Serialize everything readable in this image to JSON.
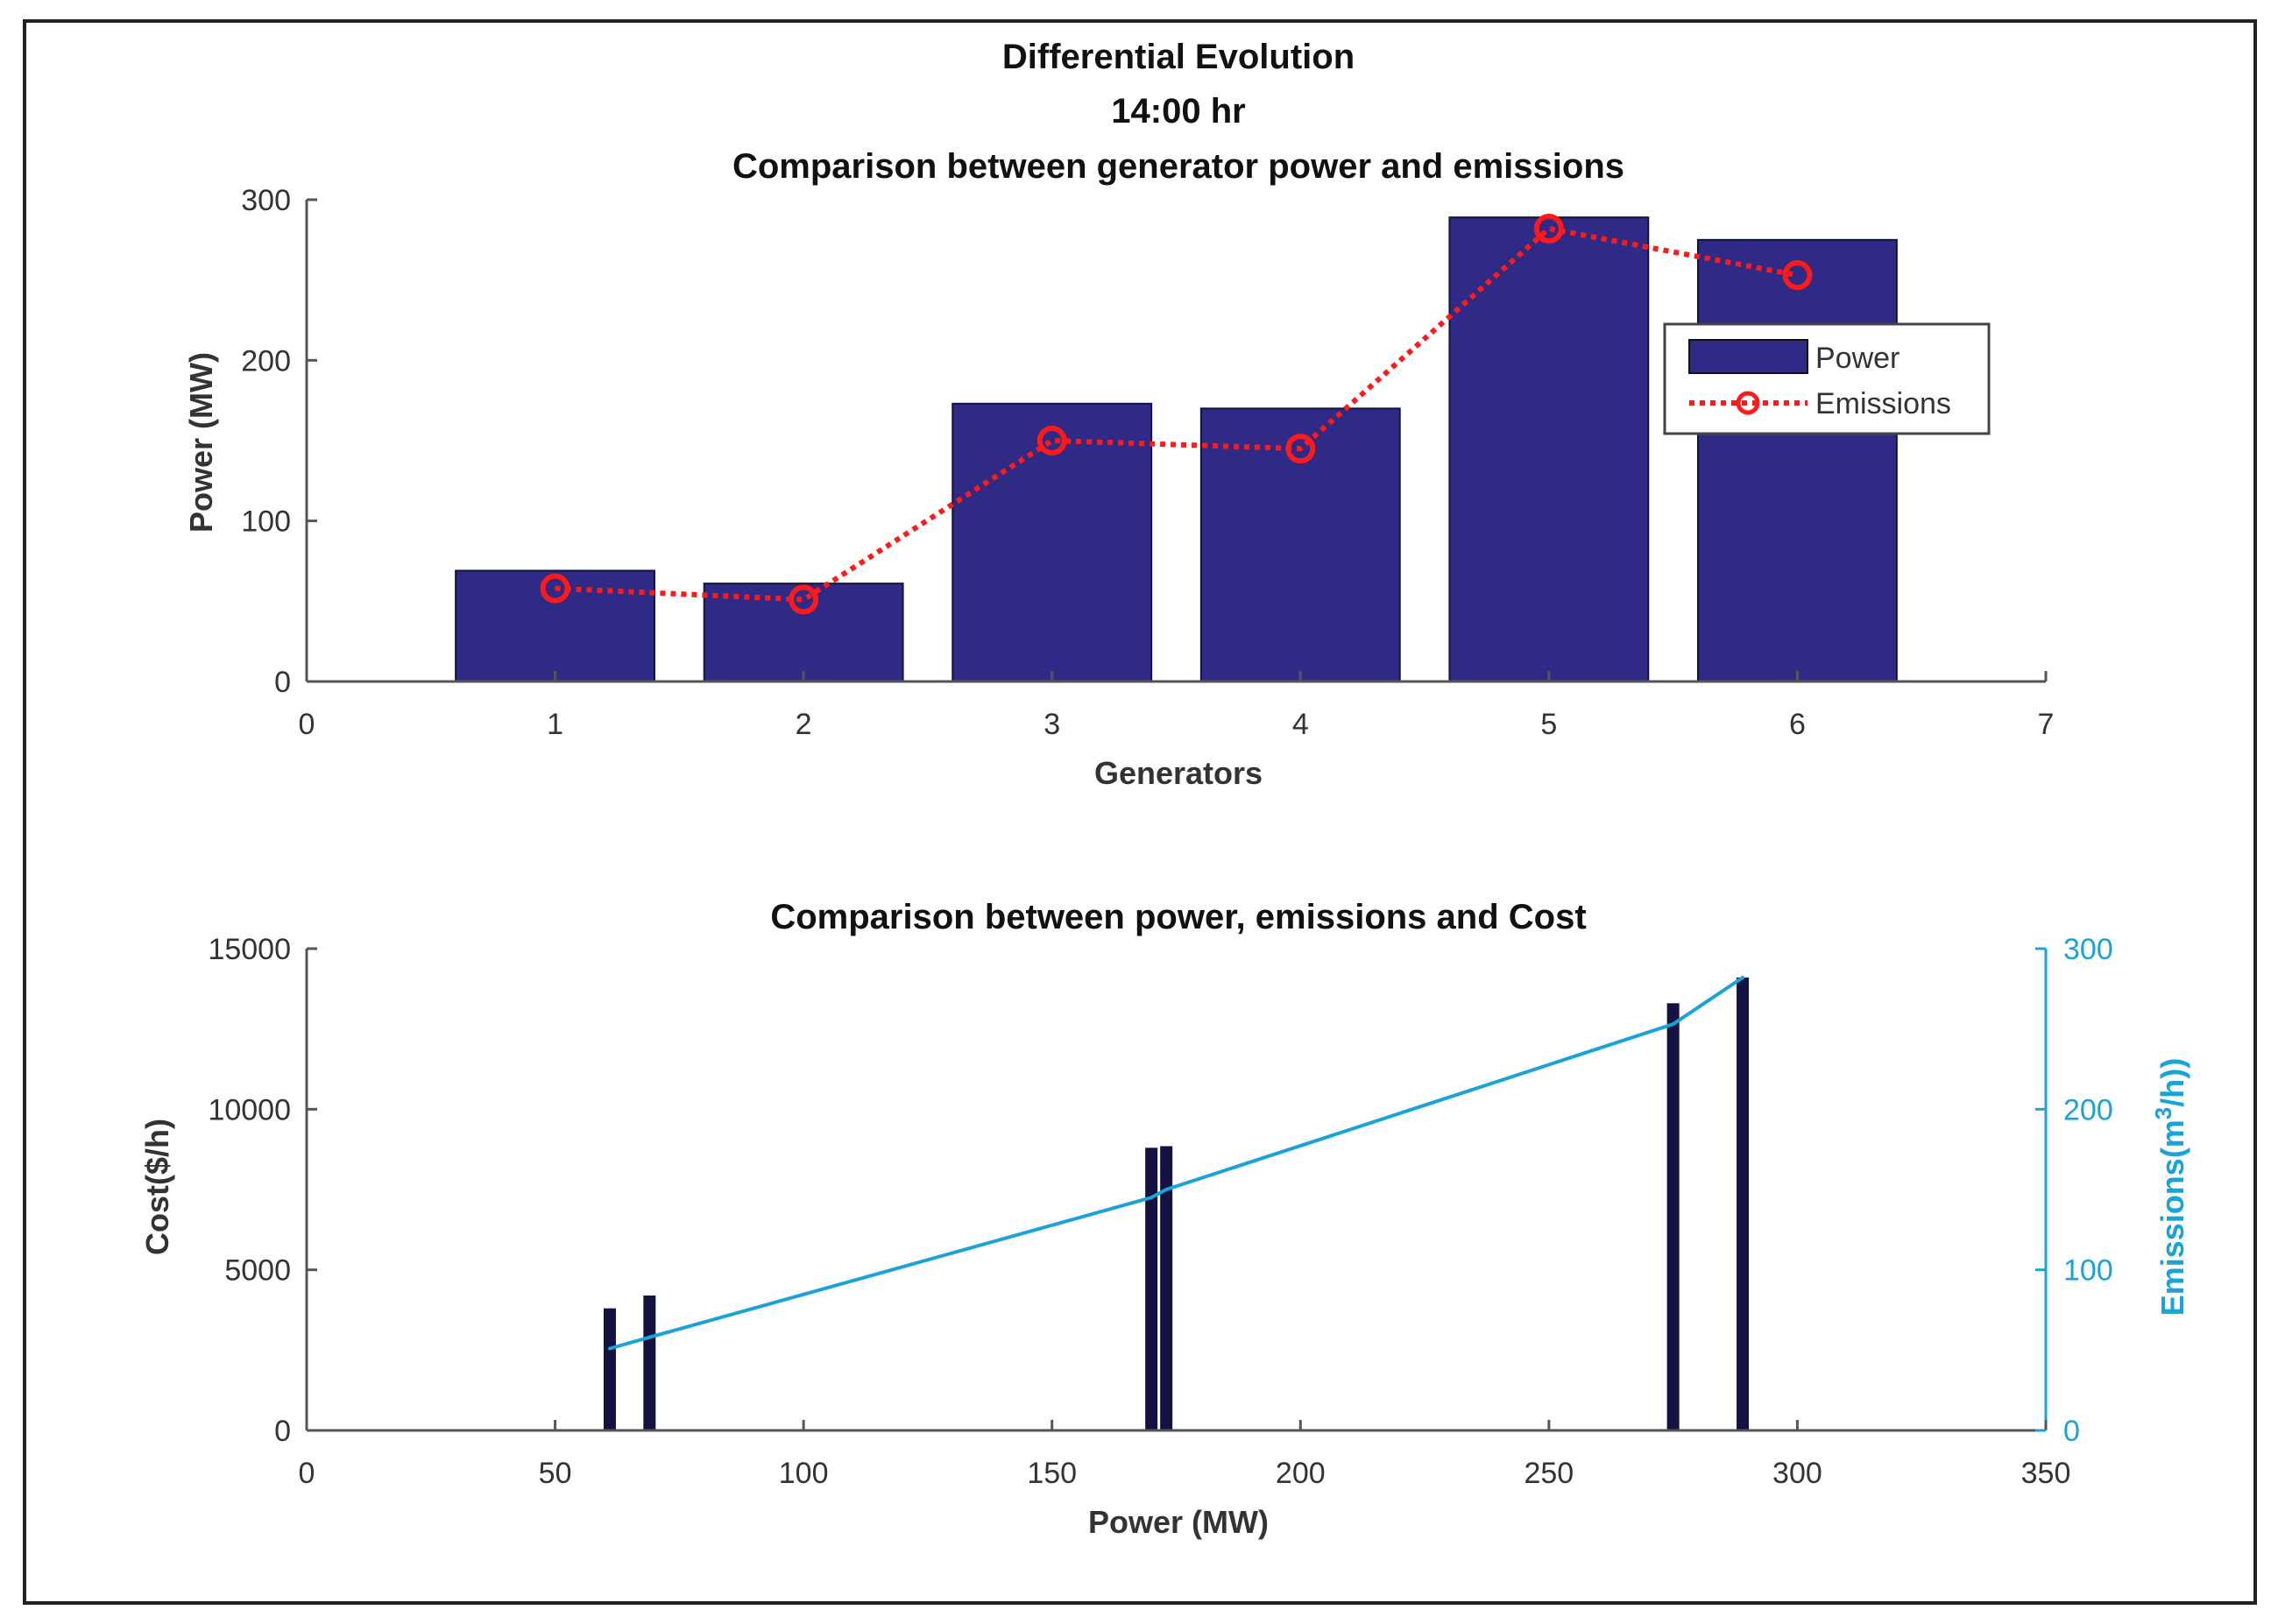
{
  "figure": {
    "title_lines": [
      "Differential Evolution",
      "14:00 hr"
    ]
  },
  "colors": {
    "bar": "#2e2a85",
    "bar_dark": "#141240",
    "emissions": "#ff1a1a",
    "right_axis": "#1aa3d9",
    "axis": "#555555"
  },
  "chart_data": [
    {
      "type": "bar",
      "title": "Comparison between generator power and emissions",
      "xlabel": "Generators",
      "ylabel": "Power (MW)",
      "xlim": [
        0,
        7
      ],
      "ylim": [
        0,
        300
      ],
      "xticks": [
        0,
        1,
        2,
        3,
        4,
        5,
        6,
        7
      ],
      "yticks": [
        0,
        100,
        200,
        300
      ],
      "categories": [
        1,
        2,
        3,
        4,
        5,
        6
      ],
      "series": [
        {
          "name": "Power",
          "kind": "bar",
          "values": [
            69,
            61,
            173,
            170,
            289,
            275
          ]
        },
        {
          "name": "Emissions",
          "kind": "line",
          "style": "dotted-circle",
          "values": [
            58,
            51,
            150,
            145,
            282,
            253
          ]
        }
      ],
      "legend": {
        "position": "top-right",
        "entries": [
          "Power",
          "Emissions"
        ]
      }
    },
    {
      "type": "bar",
      "title": "Comparison between power, emissions and Cost",
      "xlabel": "Power (MW)",
      "ylabel": "Cost($/h)",
      "xlim": [
        0,
        350
      ],
      "ylim": [
        0,
        15000
      ],
      "xticks": [
        0,
        50,
        100,
        150,
        200,
        250,
        300,
        350
      ],
      "yticks": [
        0,
        5000,
        10000,
        15000
      ],
      "cost_bars": {
        "x": [
          61,
          69,
          170,
          173,
          275,
          289
        ],
        "values": [
          3800,
          4200,
          8800,
          8850,
          13300,
          14100
        ]
      },
      "right_axis": {
        "ylabel_prefix": "Emissions(m",
        "ylabel_sup": "3",
        "ylabel_suffix": "/h))",
        "ylim": [
          0,
          300
        ],
        "yticks": [
          0,
          100,
          200,
          300
        ]
      },
      "emissions_line": {
        "x": [
          61,
          69,
          170,
          173,
          275,
          289
        ],
        "values": [
          51,
          58,
          145,
          150,
          253,
          282
        ]
      }
    }
  ]
}
